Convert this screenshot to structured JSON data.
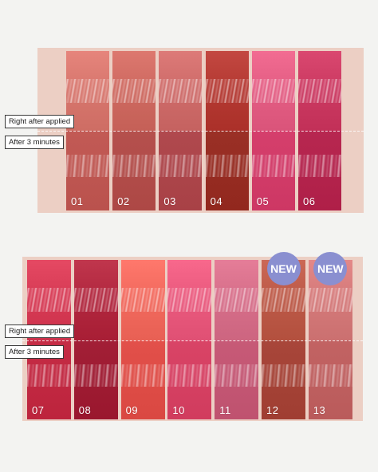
{
  "labels": {
    "right_after": "Right after applied",
    "after_3min": "After 3 minutes"
  },
  "badge_text": "NEW",
  "colors": {
    "panel_bg": "#eccfc4",
    "badge": "#8a8fd0",
    "background": "#f3f3f1"
  },
  "top_row": [
    {
      "number": "01",
      "top": "#d8776e",
      "bottom": "#c25a55"
    },
    {
      "number": "02",
      "top": "#cf6a61",
      "bottom": "#b5504d"
    },
    {
      "number": "03",
      "top": "#cf6c6a",
      "bottom": "#b0494e"
    },
    {
      "number": "04",
      "top": "#b53a33",
      "bottom": "#9a3026"
    },
    {
      "number": "05",
      "top": "#e45e84",
      "bottom": "#d53f6c"
    },
    {
      "number": "06",
      "top": "#cc3a62",
      "bottom": "#b72750"
    }
  ],
  "bottom_row": [
    {
      "number": "07",
      "top": "#d73b55",
      "bottom": "#c52c45",
      "new": false
    },
    {
      "number": "08",
      "top": "#b2283f",
      "bottom": "#a21f36",
      "new": false
    },
    {
      "number": "09",
      "top": "#f26a5e",
      "bottom": "#e2504a",
      "new": false
    },
    {
      "number": "10",
      "top": "#ea5a7e",
      "bottom": "#d94466",
      "new": false
    },
    {
      "number": "11",
      "top": "#d76f8a",
      "bottom": "#c75a77",
      "new": false
    },
    {
      "number": "12",
      "top": "#bd5a48",
      "bottom": "#a8463a",
      "new": true
    },
    {
      "number": "13",
      "top": "#d57a7a",
      "bottom": "#c26363",
      "new": true
    }
  ]
}
